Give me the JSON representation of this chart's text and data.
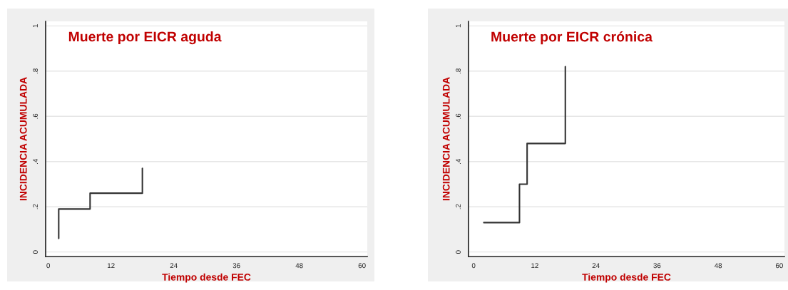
{
  "chart_data": [
    {
      "type": "step",
      "title": "Muerte por EICR aguda",
      "xlabel": "Tiempo desde FEC",
      "ylabel": "INCIDENCIA ACUMULADA",
      "series": [
        {
          "color": "#333333",
          "x": [
            2,
            2,
            8,
            18,
            18
          ],
          "values": [
            0.06,
            0.19,
            0.26,
            0.26,
            0.37
          ]
        }
      ],
      "xlim": [
        -0.5,
        61
      ],
      "xticks": [
        0,
        12,
        24,
        36,
        48,
        60
      ],
      "ylim": [
        -0.02,
        1.02
      ],
      "yticks": [
        {
          "value": 0,
          "label": "0"
        },
        {
          "value": 0.2,
          "label": ".2"
        },
        {
          "value": 0.4,
          "label": ".4"
        },
        {
          "value": 0.6,
          "label": ".6"
        },
        {
          "value": 0.8,
          "label": ".8"
        },
        {
          "value": 1,
          "label": "1"
        }
      ],
      "grid": "y",
      "legend": false
    },
    {
      "type": "step",
      "title": "Muerte por EICR crónica",
      "xlabel": "Tiempo desde FEC",
      "ylabel": "INCIDENCIA ACUMULADA",
      "series": [
        {
          "color": "#333333",
          "x": [
            2,
            9,
            10.5,
            18,
            18
          ],
          "values": [
            0.13,
            0.3,
            0.48,
            0.48,
            0.82
          ]
        }
      ],
      "xlim": [
        -1,
        61
      ],
      "xticks": [
        0,
        12,
        24,
        36,
        48,
        60
      ],
      "ylim": [
        -0.02,
        1.02
      ],
      "yticks": [
        {
          "value": 0,
          "label": "0"
        },
        {
          "value": 0.2,
          "label": ".2"
        },
        {
          "value": 0.4,
          "label": ".4"
        },
        {
          "value": 0.6,
          "label": ".6"
        },
        {
          "value": 0.8,
          "label": ".8"
        },
        {
          "value": 1,
          "label": "1"
        }
      ],
      "grid": "y",
      "legend": false
    }
  ]
}
